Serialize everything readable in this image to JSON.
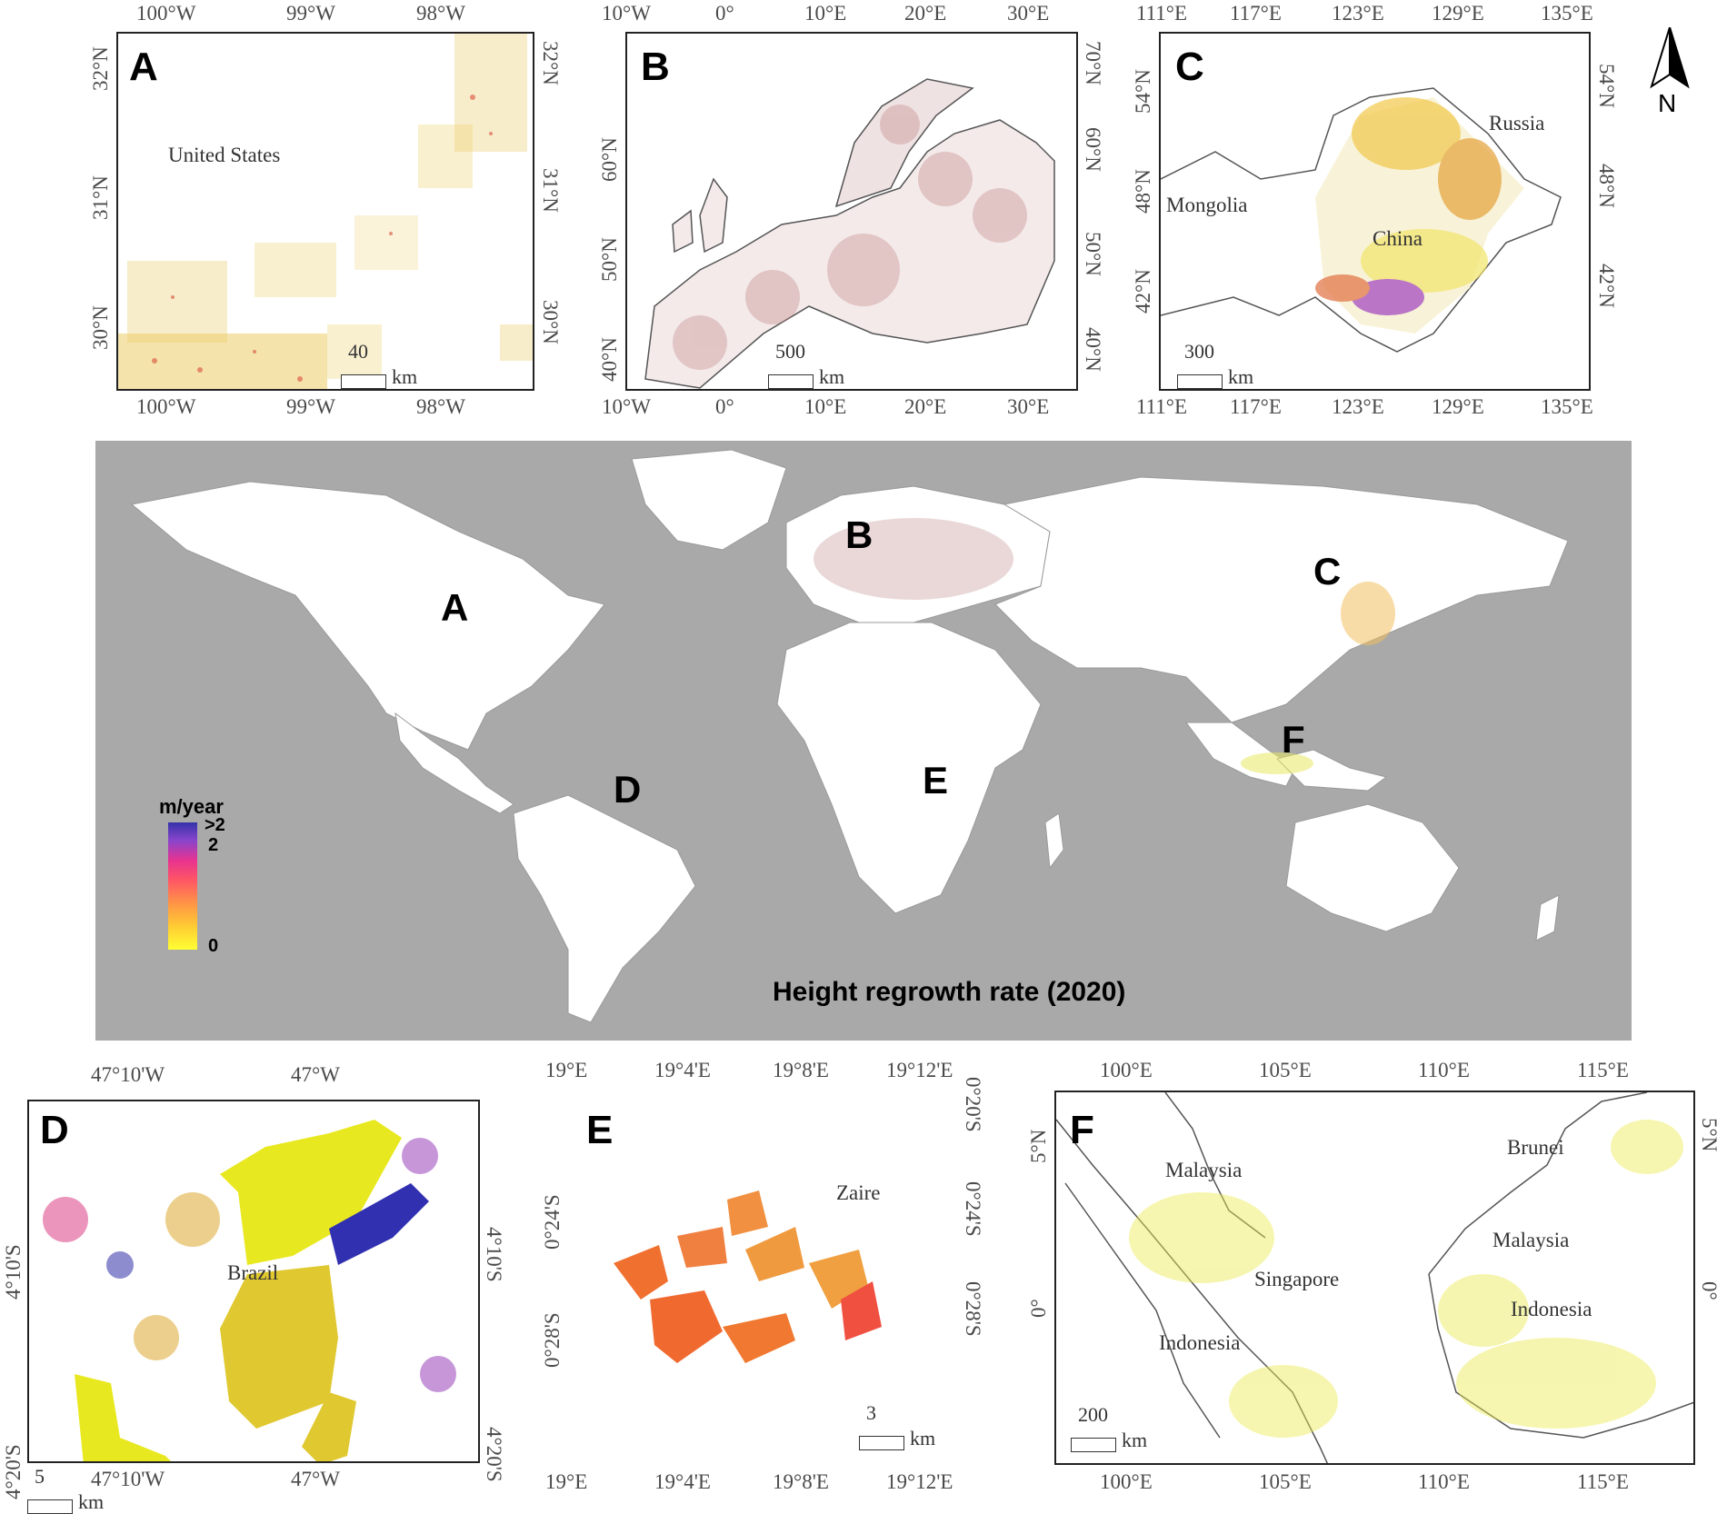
{
  "panels": {
    "a": {
      "label": "A",
      "top_ticks": [
        "100°W",
        "99°W",
        "98°W"
      ],
      "bottom_ticks": [
        "100°W",
        "99°W",
        "98°W"
      ],
      "left_ticks": [
        "32°N",
        "31°N",
        "30°N"
      ],
      "right_ticks": [
        "32°N",
        "31°N",
        "30°N"
      ],
      "places": [
        "United States"
      ],
      "scale_value": "40",
      "scale_unit": "km"
    },
    "b": {
      "label": "B",
      "top_ticks": [
        "10°W",
        "0°",
        "10°E",
        "20°E",
        "30°E"
      ],
      "bottom_ticks": [
        "10°W",
        "0°",
        "10°E",
        "20°E",
        "30°E"
      ],
      "left_ticks": [
        "60°N",
        "50°N",
        "40°N"
      ],
      "right_ticks": [
        "70°N",
        "60°N",
        "50°N",
        "40°N"
      ],
      "scale_value": "500",
      "scale_unit": "km"
    },
    "c": {
      "label": "C",
      "top_ticks": [
        "111°E",
        "117°E",
        "123°E",
        "129°E",
        "135°E"
      ],
      "bottom_ticks": [
        "111°E",
        "117°E",
        "123°E",
        "129°E",
        "135°E"
      ],
      "left_ticks": [
        "54°N",
        "48°N",
        "42°N"
      ],
      "right_ticks": [
        "54°N",
        "48°N",
        "42°N"
      ],
      "places": [
        "Russia",
        "Mongolia",
        "China"
      ],
      "scale_value": "300",
      "scale_unit": "km"
    },
    "d": {
      "label": "D",
      "top_ticks": [
        "47°10'W",
        "47°W"
      ],
      "bottom_ticks": [
        "47°10'W",
        "47°W"
      ],
      "left_ticks": [
        "4°10'S",
        "4°20'S"
      ],
      "right_ticks": [
        "4°10'S",
        "4°20'S"
      ],
      "places": [
        "Brazil"
      ],
      "scale_value": "5",
      "scale_unit": "km"
    },
    "e": {
      "label": "E",
      "top_ticks": [
        "19°E",
        "19°4'E",
        "19°8'E",
        "19°12'E"
      ],
      "bottom_ticks": [
        "19°E",
        "19°4'E",
        "19°8'E",
        "19°12'E"
      ],
      "left_ticks": [
        "0°24'S",
        "0°28'S"
      ],
      "right_ticks": [
        "0°20'S",
        "0°24'S",
        "0°28'S"
      ],
      "places": [
        "Zaire"
      ],
      "scale_value": "3",
      "scale_unit": "km"
    },
    "f": {
      "label": "F",
      "top_ticks": [
        "100°E",
        "105°E",
        "110°E",
        "115°E"
      ],
      "bottom_ticks": [
        "100°E",
        "105°E",
        "110°E",
        "115°E"
      ],
      "left_ticks": [
        "5°N",
        "0°"
      ],
      "right_ticks": [
        "5°N",
        "0°"
      ],
      "places": [
        "Malaysia",
        "Brunei",
        "Malaysia",
        "Singapore",
        "Indonesia",
        "Indonesia"
      ],
      "scale_value": "200",
      "scale_unit": "km"
    }
  },
  "north_arrow": {
    "label": "N"
  },
  "world": {
    "title": "Height regrowth rate (2020)",
    "markers": [
      "A",
      "B",
      "C",
      "D",
      "E",
      "F"
    ],
    "legend": {
      "unit": "m/year",
      "ticks": [
        ">2",
        "2",
        "0"
      ],
      "colors": [
        "#ffff33",
        "#ffcc33",
        "#ff9944",
        "#ff5566",
        "#e8338f",
        "#8844cc",
        "#3333aa"
      ]
    },
    "ocean_color": "#a9a9a9",
    "land_color": "#ffffff"
  }
}
